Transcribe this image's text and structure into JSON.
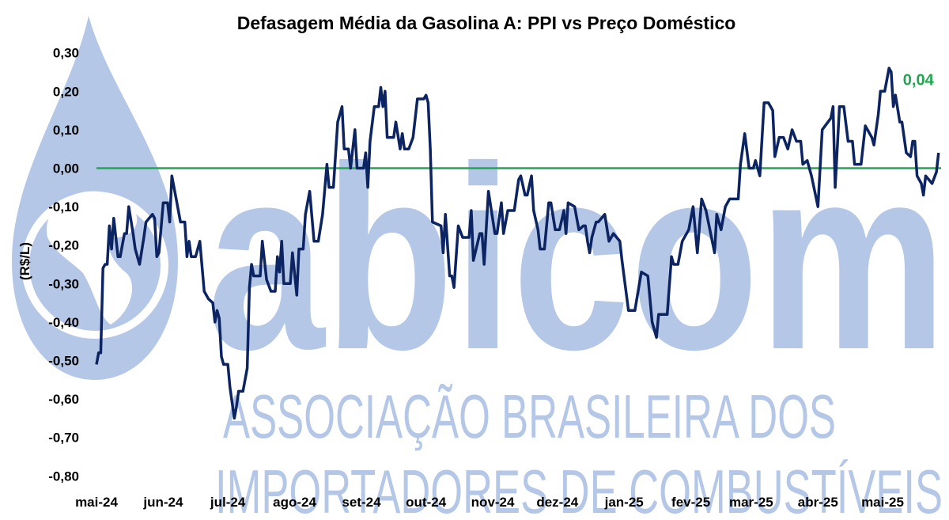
{
  "watermark": {
    "logo_text": "abicom",
    "line1": "ASSOCIAÇÃO BRASILEIRA DOS",
    "line2": "IMPORTADORES DE COMBUSTÍVEIS",
    "color": "#b4c7e7"
  },
  "chart_data": {
    "type": "line",
    "title": "Defasagem Média da Gasolina A: PPI vs Preço Doméstico",
    "xlabel": "",
    "ylabel": "(R$/L)",
    "ylim": [
      -0.8,
      0.3
    ],
    "xlim": [
      "2024-05-01",
      "2025-05-31"
    ],
    "yticks": [
      "0,30",
      "0,20",
      "0,10",
      "0,00",
      "-0,10",
      "-0,20",
      "-0,30",
      "-0,40",
      "-0,50",
      "-0,60",
      "-0,70",
      "-0,80"
    ],
    "ytick_values": [
      0.3,
      0.2,
      0.1,
      0.0,
      -0.1,
      -0.2,
      -0.3,
      -0.4,
      -0.5,
      -0.6,
      -0.7,
      -0.8
    ],
    "xticks": [
      {
        "label": "mai-24",
        "date": "2024-05-01"
      },
      {
        "label": "jun-24",
        "date": "2024-06-01"
      },
      {
        "label": "jul-24",
        "date": "2024-07-01"
      },
      {
        "label": "ago-24",
        "date": "2024-08-01"
      },
      {
        "label": "set-24",
        "date": "2024-09-01"
      },
      {
        "label": "out-24",
        "date": "2024-10-01"
      },
      {
        "label": "nov-24",
        "date": "2024-11-01"
      },
      {
        "label": "dez-24",
        "date": "2024-12-01"
      },
      {
        "label": "jan-25",
        "date": "2025-01-01"
      },
      {
        "label": "fev-25",
        "date": "2025-02-01"
      },
      {
        "label": "mar-25",
        "date": "2025-03-01"
      },
      {
        "label": "abr-25",
        "date": "2025-04-01"
      },
      {
        "label": "mai-25",
        "date": "2025-05-01"
      }
    ],
    "grid": false,
    "legend": "none",
    "reference_line": {
      "y": 0.0,
      "color": "#1fa84f"
    },
    "last_value_label": "0,04",
    "last_value_color": "#1fa84f",
    "series": [
      {
        "color": "#0c2461",
        "points": [
          [
            "2024-05-01",
            -0.51
          ],
          [
            "2024-05-02",
            -0.48
          ],
          [
            "2024-05-03",
            -0.48
          ],
          [
            "2024-05-04",
            -0.26
          ],
          [
            "2024-05-05",
            -0.25
          ],
          [
            "2024-05-06",
            -0.25
          ],
          [
            "2024-05-07",
            -0.15
          ],
          [
            "2024-05-08",
            -0.21
          ],
          [
            "2024-05-09",
            -0.13
          ],
          [
            "2024-05-10",
            -0.18
          ],
          [
            "2024-05-11",
            -0.23
          ],
          [
            "2024-05-12",
            -0.23
          ],
          [
            "2024-05-14",
            -0.17
          ],
          [
            "2024-05-15",
            -0.17
          ],
          [
            "2024-05-16",
            -0.1
          ],
          [
            "2024-05-18",
            -0.17
          ],
          [
            "2024-05-19",
            -0.21
          ],
          [
            "2024-05-21",
            -0.25
          ],
          [
            "2024-05-23",
            -0.18
          ],
          [
            "2024-05-24",
            -0.14
          ],
          [
            "2024-05-27",
            -0.12
          ],
          [
            "2024-05-28",
            -0.13
          ],
          [
            "2024-05-29",
            -0.23
          ],
          [
            "2024-05-30",
            -0.22
          ],
          [
            "2024-06-01",
            -0.09
          ],
          [
            "2024-06-03",
            -0.09
          ],
          [
            "2024-06-04",
            -0.14
          ],
          [
            "2024-06-05",
            -0.02
          ],
          [
            "2024-06-07",
            -0.08
          ],
          [
            "2024-06-09",
            -0.14
          ],
          [
            "2024-06-11",
            -0.14
          ],
          [
            "2024-06-12",
            -0.23
          ],
          [
            "2024-06-13",
            -0.19
          ],
          [
            "2024-06-14",
            -0.23
          ],
          [
            "2024-06-16",
            -0.23
          ],
          [
            "2024-06-18",
            -0.19
          ],
          [
            "2024-06-20",
            -0.32
          ],
          [
            "2024-06-22",
            -0.34
          ],
          [
            "2024-06-24",
            -0.35
          ],
          [
            "2024-06-25",
            -0.4
          ],
          [
            "2024-06-26",
            -0.37
          ],
          [
            "2024-06-27",
            -0.39
          ],
          [
            "2024-06-28",
            -0.49
          ],
          [
            "2024-06-29",
            -0.51
          ],
          [
            "2024-07-01",
            -0.51
          ],
          [
            "2024-07-02",
            -0.57
          ],
          [
            "2024-07-04",
            -0.65
          ],
          [
            "2024-07-05",
            -0.62
          ],
          [
            "2024-07-06",
            -0.58
          ],
          [
            "2024-07-08",
            -0.58
          ],
          [
            "2024-07-10",
            -0.52
          ],
          [
            "2024-07-11",
            -0.31
          ],
          [
            "2024-07-12",
            -0.25
          ],
          [
            "2024-07-13",
            -0.28
          ],
          [
            "2024-07-16",
            -0.28
          ],
          [
            "2024-07-17",
            -0.19
          ],
          [
            "2024-07-19",
            -0.29
          ],
          [
            "2024-07-21",
            -0.32
          ],
          [
            "2024-07-23",
            -0.32
          ],
          [
            "2024-07-24",
            -0.23
          ],
          [
            "2024-07-25",
            -0.27
          ],
          [
            "2024-07-26",
            -0.19
          ],
          [
            "2024-07-27",
            -0.3
          ],
          [
            "2024-07-30",
            -0.3
          ],
          [
            "2024-07-31",
            -0.22
          ],
          [
            "2024-08-02",
            -0.33
          ],
          [
            "2024-08-03",
            -0.21
          ],
          [
            "2024-08-05",
            -0.21
          ],
          [
            "2024-08-06",
            -0.12
          ],
          [
            "2024-08-08",
            -0.06
          ],
          [
            "2024-08-10",
            -0.19
          ],
          [
            "2024-08-12",
            -0.19
          ],
          [
            "2024-08-14",
            -0.12
          ],
          [
            "2024-08-16",
            0.01
          ],
          [
            "2024-08-17",
            -0.05
          ],
          [
            "2024-08-19",
            -0.05
          ],
          [
            "2024-08-21",
            0.12
          ],
          [
            "2024-08-23",
            0.16
          ],
          [
            "2024-08-24",
            0.05
          ],
          [
            "2024-08-26",
            0.05
          ],
          [
            "2024-08-27",
            0.0
          ],
          [
            "2024-08-29",
            0.1
          ],
          [
            "2024-08-30",
            0.0
          ],
          [
            "2024-09-02",
            0.0
          ],
          [
            "2024-09-03",
            0.04
          ],
          [
            "2024-09-04",
            -0.05
          ],
          [
            "2024-09-05",
            0.07
          ],
          [
            "2024-09-07",
            0.16
          ],
          [
            "2024-09-09",
            0.16
          ],
          [
            "2024-09-10",
            0.21
          ],
          [
            "2024-09-11",
            0.16
          ],
          [
            "2024-09-12",
            0.2
          ],
          [
            "2024-09-13",
            0.08
          ],
          [
            "2024-09-16",
            0.08
          ],
          [
            "2024-09-17",
            0.12
          ],
          [
            "2024-09-19",
            0.05
          ],
          [
            "2024-09-20",
            0.09
          ],
          [
            "2024-09-21",
            0.05
          ],
          [
            "2024-09-23",
            0.05
          ],
          [
            "2024-09-25",
            0.08
          ],
          [
            "2024-09-27",
            0.18
          ],
          [
            "2024-09-30",
            0.18
          ],
          [
            "2024-10-01",
            0.19
          ],
          [
            "2024-10-02",
            0.17
          ],
          [
            "2024-10-03",
            0.05
          ],
          [
            "2024-10-04",
            -0.14
          ],
          [
            "2024-10-08",
            -0.15
          ],
          [
            "2024-10-09",
            -0.22
          ],
          [
            "2024-10-10",
            -0.12
          ],
          [
            "2024-10-12",
            -0.28
          ],
          [
            "2024-10-13",
            -0.28
          ],
          [
            "2024-10-14",
            -0.31
          ],
          [
            "2024-10-16",
            -0.15
          ],
          [
            "2024-10-18",
            -0.18
          ],
          [
            "2024-10-21",
            -0.18
          ],
          [
            "2024-10-22",
            -0.11
          ],
          [
            "2024-10-23",
            -0.24
          ],
          [
            "2024-10-26",
            -0.17
          ],
          [
            "2024-10-27",
            -0.17
          ],
          [
            "2024-10-28",
            -0.25
          ],
          [
            "2024-10-30",
            -0.06
          ],
          [
            "2024-11-02",
            -0.17
          ],
          [
            "2024-11-03",
            -0.17
          ],
          [
            "2024-11-05",
            -0.09
          ],
          [
            "2024-11-06",
            -0.17
          ],
          [
            "2024-11-08",
            -0.11
          ],
          [
            "2024-11-11",
            -0.11
          ],
          [
            "2024-11-13",
            -0.03
          ],
          [
            "2024-11-14",
            -0.02
          ],
          [
            "2024-11-16",
            -0.07
          ],
          [
            "2024-11-17",
            -0.07
          ],
          [
            "2024-11-19",
            -0.02
          ],
          [
            "2024-11-20",
            -0.11
          ],
          [
            "2024-11-22",
            -0.16
          ],
          [
            "2024-11-23",
            -0.21
          ],
          [
            "2024-11-25",
            -0.21
          ],
          [
            "2024-11-27",
            -0.09
          ],
          [
            "2024-11-28",
            -0.09
          ],
          [
            "2024-11-30",
            -0.16
          ],
          [
            "2024-12-02",
            -0.16
          ],
          [
            "2024-12-04",
            -0.11
          ],
          [
            "2024-12-05",
            -0.17
          ],
          [
            "2024-12-06",
            -0.09
          ],
          [
            "2024-12-09",
            -0.1
          ],
          [
            "2024-12-11",
            -0.16
          ],
          [
            "2024-12-13",
            -0.15
          ],
          [
            "2024-12-14",
            -0.15
          ],
          [
            "2024-12-15",
            -0.19
          ],
          [
            "2024-12-16",
            -0.22
          ],
          [
            "2024-12-17",
            -0.18
          ],
          [
            "2024-12-19",
            -0.14
          ],
          [
            "2024-12-20",
            -0.14
          ],
          [
            "2024-12-23",
            -0.12
          ],
          [
            "2024-12-25",
            -0.19
          ],
          [
            "2024-12-27",
            -0.17
          ],
          [
            "2024-12-30",
            -0.19
          ],
          [
            "2024-12-31",
            -0.24
          ],
          [
            "2025-01-03",
            -0.37
          ],
          [
            "2025-01-06",
            -0.37
          ],
          [
            "2025-01-09",
            -0.27
          ],
          [
            "2025-01-12",
            -0.28
          ],
          [
            "2025-01-14",
            -0.4
          ],
          [
            "2025-01-16",
            -0.44
          ],
          [
            "2025-01-17",
            -0.38
          ],
          [
            "2025-01-21",
            -0.38
          ],
          [
            "2025-01-23",
            -0.23
          ],
          [
            "2025-01-24",
            -0.25
          ],
          [
            "2025-01-26",
            -0.25
          ],
          [
            "2025-01-28",
            -0.19
          ],
          [
            "2025-01-31",
            -0.16
          ],
          [
            "2025-02-02",
            -0.1
          ],
          [
            "2025-02-04",
            -0.22
          ],
          [
            "2025-02-06",
            -0.08
          ],
          [
            "2025-02-08",
            -0.11
          ],
          [
            "2025-02-12",
            -0.22
          ],
          [
            "2025-02-13",
            -0.12
          ],
          [
            "2025-02-15",
            -0.16
          ],
          [
            "2025-02-17",
            -0.1
          ],
          [
            "2025-02-19",
            -0.08
          ],
          [
            "2025-02-23",
            -0.08
          ],
          [
            "2025-02-24",
            0.01
          ],
          [
            "2025-02-26",
            0.09
          ],
          [
            "2025-02-28",
            0.0
          ],
          [
            "2025-03-02",
            0.0
          ],
          [
            "2025-03-03",
            0.02
          ],
          [
            "2025-03-05",
            -0.02
          ],
          [
            "2025-03-07",
            0.17
          ],
          [
            "2025-03-09",
            0.17
          ],
          [
            "2025-03-11",
            0.15
          ],
          [
            "2025-03-12",
            0.03
          ],
          [
            "2025-03-14",
            0.08
          ],
          [
            "2025-03-16",
            0.08
          ],
          [
            "2025-03-18",
            0.05
          ],
          [
            "2025-03-20",
            0.1
          ],
          [
            "2025-03-22",
            0.07
          ],
          [
            "2025-03-24",
            0.07
          ],
          [
            "2025-03-25",
            0.01
          ],
          [
            "2025-03-27",
            0.02
          ],
          [
            "2025-03-29",
            -0.02
          ],
          [
            "2025-04-01",
            -0.1
          ],
          [
            "2025-04-03",
            0.1
          ],
          [
            "2025-04-07",
            0.13
          ],
          [
            "2025-04-08",
            0.16
          ],
          [
            "2025-04-09",
            -0.05
          ],
          [
            "2025-04-11",
            0.16
          ],
          [
            "2025-04-13",
            0.16
          ],
          [
            "2025-04-15",
            0.07
          ],
          [
            "2025-04-17",
            0.07
          ],
          [
            "2025-04-18",
            0.01
          ],
          [
            "2025-04-21",
            0.01
          ],
          [
            "2025-04-22",
            0.06
          ],
          [
            "2025-04-23",
            0.11
          ],
          [
            "2025-04-26",
            0.08
          ],
          [
            "2025-04-27",
            0.06
          ],
          [
            "2025-04-29",
            0.14
          ],
          [
            "2025-04-30",
            0.2
          ],
          [
            "2025-05-02",
            0.2
          ],
          [
            "2025-05-04",
            0.26
          ],
          [
            "2025-05-05",
            0.25
          ],
          [
            "2025-05-06",
            0.16
          ],
          [
            "2025-05-07",
            0.19
          ],
          [
            "2025-05-09",
            0.12
          ],
          [
            "2025-05-10",
            0.12
          ],
          [
            "2025-05-12",
            0.04
          ],
          [
            "2025-05-14",
            0.03
          ],
          [
            "2025-05-15",
            0.07
          ],
          [
            "2025-05-16",
            0.07
          ],
          [
            "2025-05-17",
            -0.02
          ],
          [
            "2025-05-19",
            -0.04
          ],
          [
            "2025-05-20",
            -0.07
          ],
          [
            "2025-05-21",
            -0.02
          ],
          [
            "2025-05-24",
            -0.04
          ],
          [
            "2025-05-26",
            -0.01
          ],
          [
            "2025-05-27",
            0.04
          ]
        ]
      }
    ]
  }
}
